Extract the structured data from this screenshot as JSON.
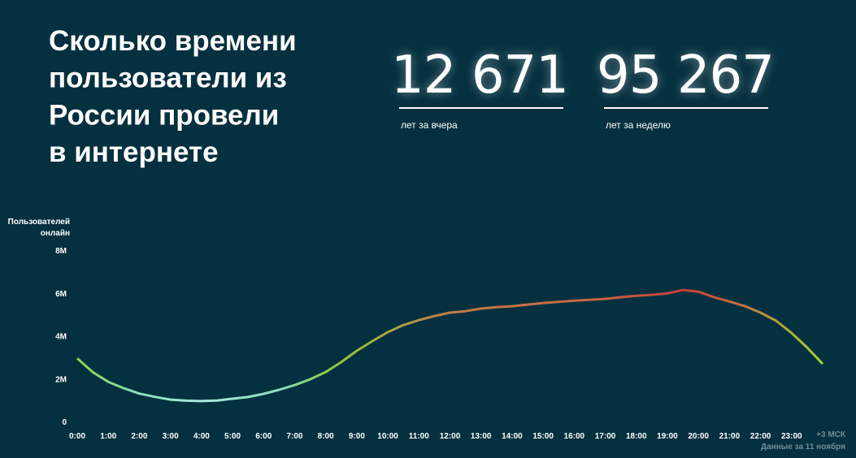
{
  "header": {
    "title": [
      "Сколько времени",
      "пользователи из",
      "России провели",
      "в интернете"
    ]
  },
  "stats": [
    {
      "value": "12 671",
      "label": "лет за вчера"
    },
    {
      "value": "95 267",
      "label": "лет за неделю"
    }
  ],
  "chart_data": {
    "type": "line",
    "ylabel": [
      "Пользователей",
      "онлайн"
    ],
    "timezone": "+3 МСК",
    "note": "Данные за 11 ноября",
    "xlim": [
      0,
      24
    ],
    "xticks": [
      {
        "value": 0,
        "label": "0:00"
      },
      {
        "value": 1,
        "label": "1:00"
      },
      {
        "value": 2,
        "label": "2:00"
      },
      {
        "value": 3,
        "label": "3:00"
      },
      {
        "value": 4,
        "label": "4:00"
      },
      {
        "value": 5,
        "label": "5:00"
      },
      {
        "value": 6,
        "label": "6:00"
      },
      {
        "value": 7,
        "label": "7:00"
      },
      {
        "value": 8,
        "label": "8:00"
      },
      {
        "value": 9,
        "label": "9:00"
      },
      {
        "value": 10,
        "label": "10:00"
      },
      {
        "value": 11,
        "label": "11:00"
      },
      {
        "value": 12,
        "label": "12:00"
      },
      {
        "value": 13,
        "label": "13:00"
      },
      {
        "value": 14,
        "label": "14:00"
      },
      {
        "value": 15,
        "label": "15:00"
      },
      {
        "value": 16,
        "label": "16:00"
      },
      {
        "value": 17,
        "label": "17:00"
      },
      {
        "value": 18,
        "label": "18:00"
      },
      {
        "value": 19,
        "label": "19:00"
      },
      {
        "value": 20,
        "label": "20:00"
      },
      {
        "value": 21,
        "label": "21:00"
      },
      {
        "value": 22,
        "label": "22:00"
      },
      {
        "value": 23,
        "label": "23:00"
      }
    ],
    "ylim": [
      0,
      8000000
    ],
    "yticks": [
      0,
      {
        "value": 2000000,
        "label": "2M"
      },
      {
        "value": 4000000,
        "label": "4M"
      },
      {
        "value": 6000000,
        "label": "6M"
      },
      {
        "value": 8000000,
        "label": "8M"
      }
    ],
    "x": [
      0,
      0.5,
      1,
      1.5,
      2,
      2.5,
      3,
      3.5,
      4,
      4.5,
      5,
      5.5,
      6,
      6.5,
      7,
      7.5,
      8,
      8.5,
      9,
      9.5,
      10,
      10.5,
      11,
      11.5,
      12,
      12.5,
      13,
      13.5,
      14,
      15,
      16,
      17,
      17.5,
      18,
      18.5,
      19,
      19.5,
      20,
      20.5,
      21,
      21.5,
      22,
      22.5,
      23,
      23.5,
      24
    ],
    "values": [
      2950000,
      2300000,
      1850000,
      1550000,
      1300000,
      1150000,
      1020000,
      970000,
      950000,
      980000,
      1060000,
      1140000,
      1290000,
      1480000,
      1700000,
      1970000,
      2310000,
      2770000,
      3300000,
      3750000,
      4170000,
      4500000,
      4730000,
      4920000,
      5080000,
      5150000,
      5270000,
      5340000,
      5380000,
      5530000,
      5640000,
      5720000,
      5800000,
      5870000,
      5910000,
      5980000,
      6140000,
      6060000,
      5800000,
      5600000,
      5380000,
      5080000,
      4700000,
      4130000,
      3450000,
      2690000
    ]
  }
}
